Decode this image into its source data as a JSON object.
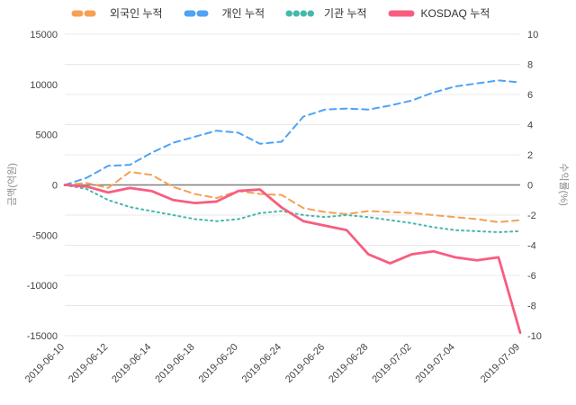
{
  "chart_data": {
    "type": "line",
    "x": [
      "2019-06-10",
      "2019-06-11",
      "2019-06-12",
      "2019-06-13",
      "2019-06-14",
      "2019-06-17",
      "2019-06-18",
      "2019-06-19",
      "2019-06-20",
      "2019-06-21",
      "2019-06-24",
      "2019-06-25",
      "2019-06-26",
      "2019-06-27",
      "2019-06-28",
      "2019-07-01",
      "2019-07-02",
      "2019-07-03",
      "2019-07-04",
      "2019-07-05",
      "2019-07-08",
      "2019-07-09"
    ],
    "x_tick_indices": [
      0,
      2,
      4,
      6,
      8,
      10,
      12,
      14,
      16,
      18,
      21
    ],
    "left_axis": {
      "label": "금액(억원)",
      "range": [
        -15000,
        15000
      ],
      "ticks": [
        15000,
        10000,
        5000,
        0,
        -5000,
        -10000,
        -15000
      ]
    },
    "right_axis": {
      "label": "수익률(%)",
      "range": [
        -10,
        10
      ],
      "ticks": [
        10,
        8,
        6,
        4,
        2,
        0,
        -2,
        -4,
        -6,
        -8,
        -10
      ]
    },
    "grid": true,
    "legend_position": "top",
    "series": [
      {
        "name": "외국인 누적",
        "key": "foreign",
        "axis": "left",
        "style": "dashed",
        "color": "#F5A054",
        "values": [
          0,
          200,
          -300,
          1300,
          1000,
          -200,
          -900,
          -1300,
          -600,
          -900,
          -1000,
          -2300,
          -2700,
          -2900,
          -2600,
          -2700,
          -2800,
          -3000,
          -3200,
          -3400,
          -3700,
          -3500
        ]
      },
      {
        "name": "개인 누적",
        "key": "individual",
        "axis": "left",
        "style": "dashed",
        "color": "#4DA3F5",
        "values": [
          0,
          700,
          1900,
          2000,
          3200,
          4200,
          4800,
          5400,
          5200,
          4100,
          4300,
          6800,
          7500,
          7600,
          7500,
          7900,
          8400,
          9200,
          9800,
          10100,
          10400,
          10200
        ]
      },
      {
        "name": "기관 누적",
        "key": "institution",
        "axis": "left",
        "style": "dotted",
        "color": "#45B8AC",
        "values": [
          0,
          -400,
          -1500,
          -2200,
          -2600,
          -3000,
          -3400,
          -3600,
          -3400,
          -2800,
          -2600,
          -3000,
          -3200,
          -3000,
          -3200,
          -3500,
          -3800,
          -4200,
          -4500,
          -4600,
          -4700,
          -4600
        ]
      },
      {
        "name": "KOSDAQ 누적",
        "key": "kosdaq",
        "axis": "right",
        "style": "solid",
        "color": "#F85D7F",
        "values": [
          0,
          -0.1,
          -0.5,
          -0.2,
          -0.4,
          -1.0,
          -1.2,
          -1.1,
          -0.4,
          -0.3,
          -1.5,
          -2.4,
          -2.7,
          -3.0,
          -4.6,
          -5.2,
          -4.6,
          -4.4,
          -4.8,
          -5.0,
          -4.8,
          -9.8
        ]
      }
    ],
    "colors": {
      "grid": "#e8e8e8",
      "zero_line": "#7f7f7f",
      "tick_text": "#444444",
      "axis_title_text": "#8a8a8a"
    }
  }
}
